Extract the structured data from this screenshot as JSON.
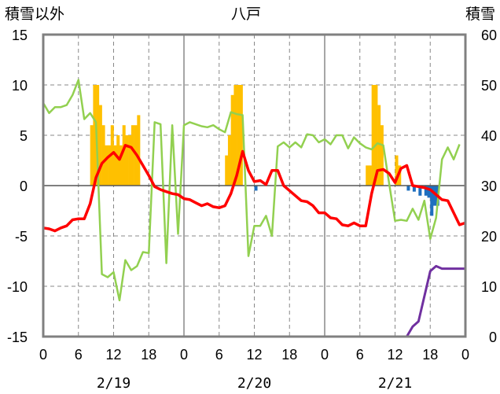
{
  "title": "八戸",
  "chart_data": {
    "type": "bar",
    "title": "八戸",
    "ylabel_left": "積雪以外",
    "ylabel_right": "積雪",
    "ylim_left": [
      -15,
      15
    ],
    "ylim_right": [
      0,
      60
    ],
    "yticks_left": [
      "15",
      "10",
      "5",
      "0",
      "-5",
      "-10",
      "-15"
    ],
    "yticks_right": [
      "60",
      "50",
      "40",
      "30",
      "20",
      "10",
      "0"
    ],
    "xlim_hours": [
      0,
      72
    ],
    "xtick_labels": [
      "0",
      "6",
      "12",
      "18",
      "0",
      "6",
      "12",
      "18",
      "0",
      "6",
      "12",
      "18",
      "0"
    ],
    "date_labels": [
      "2/19",
      "2/20",
      "2/21"
    ],
    "grid": "dashed vertical lines every 6 hours",
    "colors": {
      "snowfall": "#ffc000",
      "melt": "#1f6fbf",
      "temperature": "#ff0000",
      "wind": "#92d050",
      "snow_depth": "#7030a0",
      "axis": "#808080"
    },
    "series": [
      {
        "key": "snowfall",
        "axis": "left",
        "render": "bar",
        "points": [
          [
            8,
            6
          ],
          [
            8.5,
            10
          ],
          [
            9,
            10
          ],
          [
            9.5,
            8
          ],
          [
            10,
            6
          ],
          [
            10.5,
            4
          ],
          [
            11,
            4
          ],
          [
            11.5,
            6
          ],
          [
            12,
            4
          ],
          [
            12.5,
            5
          ],
          [
            13,
            4
          ],
          [
            13.5,
            6
          ],
          [
            14,
            5
          ],
          [
            14.5,
            5
          ],
          [
            15,
            6
          ],
          [
            15.5,
            6
          ],
          [
            16,
            7
          ],
          [
            31,
            3
          ],
          [
            31.5,
            5
          ],
          [
            32,
            9
          ],
          [
            32.5,
            10
          ],
          [
            33,
            10
          ],
          [
            33.5,
            10
          ],
          [
            55,
            2
          ],
          [
            55.5,
            2
          ],
          [
            56,
            10
          ],
          [
            56.5,
            10
          ],
          [
            57,
            8
          ],
          [
            57.5,
            6
          ],
          [
            60,
            3
          ],
          [
            60.5,
            2
          ]
        ]
      },
      {
        "key": "melt",
        "axis": "left",
        "render": "bar",
        "points": [
          [
            36,
            -0.5
          ],
          [
            62,
            -0.5
          ],
          [
            63,
            -0.6
          ],
          [
            64,
            -1
          ],
          [
            65,
            -1
          ],
          [
            65.5,
            -1.2
          ],
          [
            66,
            -3
          ],
          [
            66.5,
            -2
          ],
          [
            67,
            -2
          ]
        ]
      },
      {
        "key": "wind",
        "axis": "left",
        "render": "line",
        "points": [
          [
            0,
            8.2
          ],
          [
            1,
            7.2
          ],
          [
            2,
            7.8
          ],
          [
            3,
            7.8
          ],
          [
            4,
            8
          ],
          [
            5,
            9
          ],
          [
            6,
            10.5
          ],
          [
            7,
            6.6
          ],
          [
            8,
            7.2
          ],
          [
            9,
            6.3
          ],
          [
            10,
            -8.8
          ],
          [
            11,
            -9.1
          ],
          [
            12,
            -8.6
          ],
          [
            13,
            -11.4
          ],
          [
            14,
            -7.4
          ],
          [
            15,
            -8.4
          ],
          [
            16,
            -8
          ],
          [
            17,
            -6.6
          ],
          [
            18,
            -6.7
          ],
          [
            19,
            6.3
          ],
          [
            20,
            6.1
          ],
          [
            21,
            -7.7
          ],
          [
            22,
            6
          ],
          [
            23,
            -4.8
          ],
          [
            24,
            6
          ],
          [
            25,
            6.3
          ],
          [
            26,
            6.1
          ],
          [
            27,
            5.9
          ],
          [
            28,
            5.8
          ],
          [
            29,
            6
          ],
          [
            30,
            5.6
          ],
          [
            31,
            5.3
          ],
          [
            32,
            7.3
          ],
          [
            33,
            7.1
          ],
          [
            34,
            7
          ],
          [
            35,
            -7
          ],
          [
            36,
            -4
          ],
          [
            37,
            -4
          ],
          [
            38,
            -3
          ],
          [
            39,
            -5
          ],
          [
            40,
            3.9
          ],
          [
            41,
            4.3
          ],
          [
            42,
            3.8
          ],
          [
            43,
            4.3
          ],
          [
            44,
            3.8
          ],
          [
            45,
            5.1
          ],
          [
            46,
            5
          ],
          [
            47,
            4.3
          ],
          [
            48,
            4.6
          ],
          [
            49,
            4.1
          ],
          [
            50,
            5
          ],
          [
            51,
            5
          ],
          [
            52,
            3.7
          ],
          [
            53,
            4.8
          ],
          [
            54,
            4.2
          ],
          [
            55,
            3.8
          ],
          [
            56,
            3.6
          ],
          [
            57,
            4.2
          ],
          [
            58,
            4
          ],
          [
            59,
            0.2
          ],
          [
            60,
            -3.5
          ],
          [
            61,
            -3.4
          ],
          [
            62,
            -3.5
          ],
          [
            63,
            -2.3
          ],
          [
            64,
            -3.4
          ],
          [
            65,
            -1.5
          ],
          [
            66,
            -5.3
          ],
          [
            67,
            -3.2
          ],
          [
            68,
            2.6
          ],
          [
            69,
            3.8
          ],
          [
            70,
            2.6
          ],
          [
            71,
            4.1
          ]
        ]
      },
      {
        "key": "temperature",
        "axis": "left",
        "render": "line",
        "points": [
          [
            0,
            -4.2
          ],
          [
            1,
            -4.3
          ],
          [
            2,
            -4.5
          ],
          [
            3,
            -4.2
          ],
          [
            4,
            -4
          ],
          [
            5,
            -3.4
          ],
          [
            6,
            -3.3
          ],
          [
            7,
            -3.3
          ],
          [
            8,
            -1.8
          ],
          [
            9,
            0.8
          ],
          [
            10,
            2.2
          ],
          [
            11,
            2.8
          ],
          [
            12,
            3.3
          ],
          [
            13,
            2.6
          ],
          [
            14,
            4
          ],
          [
            15,
            3.8
          ],
          [
            16,
            3
          ],
          [
            17,
            2
          ],
          [
            18,
            1
          ],
          [
            19,
            -0.1
          ],
          [
            20,
            -0.4
          ],
          [
            21,
            -0.6
          ],
          [
            22,
            -0.8
          ],
          [
            23,
            -0.9
          ],
          [
            24,
            -1.3
          ],
          [
            25,
            -1.4
          ],
          [
            26,
            -1.7
          ],
          [
            27,
            -2
          ],
          [
            28,
            -1.8
          ],
          [
            29,
            -2.1
          ],
          [
            30,
            -2.2
          ],
          [
            31,
            -2
          ],
          [
            32,
            -0.8
          ],
          [
            33,
            1
          ],
          [
            34,
            3.4
          ],
          [
            35,
            1.5
          ],
          [
            36,
            0.4
          ],
          [
            37,
            0.5
          ],
          [
            38,
            0.1
          ],
          [
            39,
            1.5
          ],
          [
            40,
            1.5
          ],
          [
            41,
            0
          ],
          [
            42,
            -0.5
          ],
          [
            43,
            -1
          ],
          [
            44,
            -1.5
          ],
          [
            45,
            -1.6
          ],
          [
            46,
            -2
          ],
          [
            47,
            -2.7
          ],
          [
            48,
            -2.7
          ],
          [
            49,
            -3.2
          ],
          [
            50,
            -3.3
          ],
          [
            51,
            -3.9
          ],
          [
            52,
            -4
          ],
          [
            53,
            -3.7
          ],
          [
            54,
            -4
          ],
          [
            55,
            -4
          ],
          [
            56,
            -0.8
          ],
          [
            57,
            1.5
          ],
          [
            58,
            1.6
          ],
          [
            59,
            1.2
          ],
          [
            60,
            0.3
          ],
          [
            61,
            1.7
          ],
          [
            62,
            2
          ],
          [
            63,
            0
          ],
          [
            64,
            -0.1
          ],
          [
            65,
            -0.2
          ],
          [
            66,
            -0.4
          ],
          [
            67,
            -0.9
          ],
          [
            68,
            -1.4
          ],
          [
            69,
            -1.5
          ],
          [
            70,
            -2.7
          ],
          [
            71,
            -3.9
          ],
          [
            72,
            -3.7
          ]
        ]
      },
      {
        "key": "snow_depth",
        "axis": "right",
        "render": "line",
        "points": [
          [
            0,
            0
          ],
          [
            62,
            0
          ],
          [
            63,
            2
          ],
          [
            64,
            3
          ],
          [
            65,
            8
          ],
          [
            66,
            13
          ],
          [
            67,
            14
          ],
          [
            68,
            13.5
          ],
          [
            69,
            13.5
          ],
          [
            70,
            13.5
          ],
          [
            71,
            13.5
          ],
          [
            72,
            13.5
          ]
        ]
      }
    ]
  }
}
